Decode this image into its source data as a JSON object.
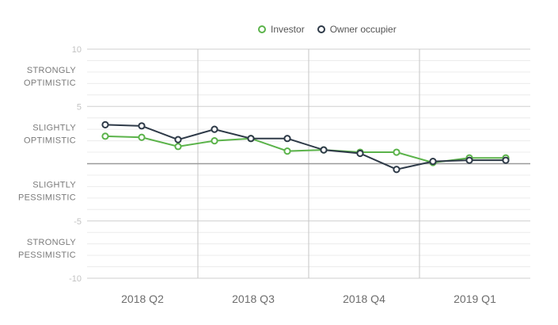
{
  "chart_data": {
    "type": "line",
    "x_groups": [
      "2018 Q2",
      "2018 Q3",
      "2018 Q4",
      "2019 Q1"
    ],
    "ylim": [
      -10,
      10
    ],
    "y_ticks": [
      10,
      5,
      -5,
      -10
    ],
    "sentiment_labels": [
      {
        "lines": [
          "STRONGLY",
          "OPTIMISTIC"
        ],
        "y": 7.5
      },
      {
        "lines": [
          "SLIGHTLY",
          "OPTIMISTIC"
        ],
        "y": 2.5
      },
      {
        "lines": [
          "SLIGHTLY",
          "PESSIMISTIC"
        ],
        "y": -2.5
      },
      {
        "lines": [
          "STRONGLY",
          "PESSIMISTIC"
        ],
        "y": -7.5
      }
    ],
    "x": [
      0,
      1,
      2,
      3,
      4,
      5,
      6,
      7,
      8,
      9,
      10,
      11,
      12,
      13
    ],
    "series": [
      {
        "name": "Investor",
        "color": "#5bb34a",
        "values": [
          2.4,
          2.3,
          1.5,
          2.0,
          2.2,
          1.1,
          1.2,
          1.0,
          1.0,
          0.1,
          0.5,
          0.5,
          null,
          null
        ]
      },
      {
        "name": "Owner occupier",
        "color": "#2e3a48",
        "values": [
          3.4,
          3.3,
          2.1,
          3.0,
          2.2,
          2.2,
          1.2,
          0.9,
          -0.5,
          0.2,
          0.3,
          0.3,
          null,
          null
        ]
      }
    ],
    "grid": true,
    "legend_position": "top-right"
  }
}
